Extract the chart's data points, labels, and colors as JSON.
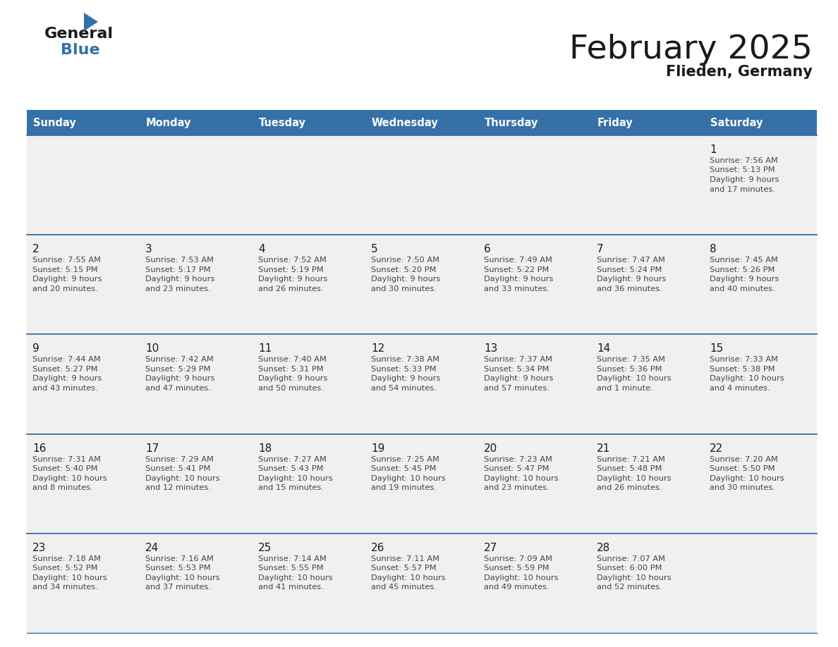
{
  "title": "February 2025",
  "subtitle": "Flieden, Germany",
  "header_bg_color": "#3570a8",
  "header_text_color": "#ffffff",
  "cell_bg_color": "#ffffff",
  "border_color": "#3570a8",
  "title_color": "#1a1a1a",
  "subtitle_color": "#1a1a1a",
  "day_number_color": "#1a1a1a",
  "cell_text_color": "#444444",
  "days_of_week": [
    "Sunday",
    "Monday",
    "Tuesday",
    "Wednesday",
    "Thursday",
    "Friday",
    "Saturday"
  ],
  "calendar": [
    [
      null,
      null,
      null,
      null,
      null,
      null,
      {
        "day": 1,
        "sunrise": "7:56 AM",
        "sunset": "5:13 PM",
        "daylight": "9 hours and 17 minutes"
      }
    ],
    [
      {
        "day": 2,
        "sunrise": "7:55 AM",
        "sunset": "5:15 PM",
        "daylight": "9 hours and 20 minutes"
      },
      {
        "day": 3,
        "sunrise": "7:53 AM",
        "sunset": "5:17 PM",
        "daylight": "9 hours and 23 minutes"
      },
      {
        "day": 4,
        "sunrise": "7:52 AM",
        "sunset": "5:19 PM",
        "daylight": "9 hours and 26 minutes"
      },
      {
        "day": 5,
        "sunrise": "7:50 AM",
        "sunset": "5:20 PM",
        "daylight": "9 hours and 30 minutes"
      },
      {
        "day": 6,
        "sunrise": "7:49 AM",
        "sunset": "5:22 PM",
        "daylight": "9 hours and 33 minutes"
      },
      {
        "day": 7,
        "sunrise": "7:47 AM",
        "sunset": "5:24 PM",
        "daylight": "9 hours and 36 minutes"
      },
      {
        "day": 8,
        "sunrise": "7:45 AM",
        "sunset": "5:26 PM",
        "daylight": "9 hours and 40 minutes"
      }
    ],
    [
      {
        "day": 9,
        "sunrise": "7:44 AM",
        "sunset": "5:27 PM",
        "daylight": "9 hours and 43 minutes"
      },
      {
        "day": 10,
        "sunrise": "7:42 AM",
        "sunset": "5:29 PM",
        "daylight": "9 hours and 47 minutes"
      },
      {
        "day": 11,
        "sunrise": "7:40 AM",
        "sunset": "5:31 PM",
        "daylight": "9 hours and 50 minutes"
      },
      {
        "day": 12,
        "sunrise": "7:38 AM",
        "sunset": "5:33 PM",
        "daylight": "9 hours and 54 minutes"
      },
      {
        "day": 13,
        "sunrise": "7:37 AM",
        "sunset": "5:34 PM",
        "daylight": "9 hours and 57 minutes"
      },
      {
        "day": 14,
        "sunrise": "7:35 AM",
        "sunset": "5:36 PM",
        "daylight": "10 hours and 1 minute"
      },
      {
        "day": 15,
        "sunrise": "7:33 AM",
        "sunset": "5:38 PM",
        "daylight": "10 hours and 4 minutes"
      }
    ],
    [
      {
        "day": 16,
        "sunrise": "7:31 AM",
        "sunset": "5:40 PM",
        "daylight": "10 hours and 8 minutes"
      },
      {
        "day": 17,
        "sunrise": "7:29 AM",
        "sunset": "5:41 PM",
        "daylight": "10 hours and 12 minutes"
      },
      {
        "day": 18,
        "sunrise": "7:27 AM",
        "sunset": "5:43 PM",
        "daylight": "10 hours and 15 minutes"
      },
      {
        "day": 19,
        "sunrise": "7:25 AM",
        "sunset": "5:45 PM",
        "daylight": "10 hours and 19 minutes"
      },
      {
        "day": 20,
        "sunrise": "7:23 AM",
        "sunset": "5:47 PM",
        "daylight": "10 hours and 23 minutes"
      },
      {
        "day": 21,
        "sunrise": "7:21 AM",
        "sunset": "5:48 PM",
        "daylight": "10 hours and 26 minutes"
      },
      {
        "day": 22,
        "sunrise": "7:20 AM",
        "sunset": "5:50 PM",
        "daylight": "10 hours and 30 minutes"
      }
    ],
    [
      {
        "day": 23,
        "sunrise": "7:18 AM",
        "sunset": "5:52 PM",
        "daylight": "10 hours and 34 minutes"
      },
      {
        "day": 24,
        "sunrise": "7:16 AM",
        "sunset": "5:53 PM",
        "daylight": "10 hours and 37 minutes"
      },
      {
        "day": 25,
        "sunrise": "7:14 AM",
        "sunset": "5:55 PM",
        "daylight": "10 hours and 41 minutes"
      },
      {
        "day": 26,
        "sunrise": "7:11 AM",
        "sunset": "5:57 PM",
        "daylight": "10 hours and 45 minutes"
      },
      {
        "day": 27,
        "sunrise": "7:09 AM",
        "sunset": "5:59 PM",
        "daylight": "10 hours and 49 minutes"
      },
      {
        "day": 28,
        "sunrise": "7:07 AM",
        "sunset": "6:00 PM",
        "daylight": "10 hours and 52 minutes"
      },
      null
    ]
  ]
}
